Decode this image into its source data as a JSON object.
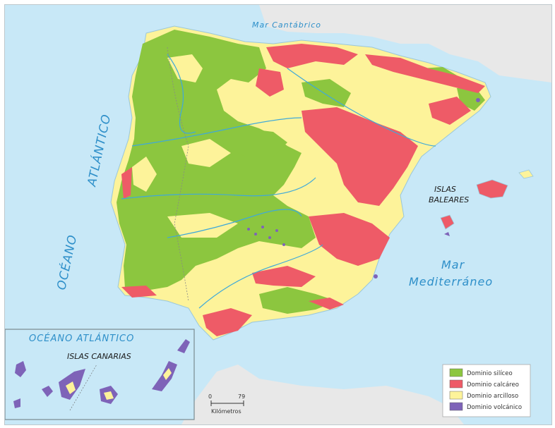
{
  "labels": {
    "mar_cantabrico": "Mar Cantábrico",
    "atlantico": "ATLÁNTICO",
    "oceano": "OCÉANO",
    "islas_baleares_1": "ISLAS",
    "islas_baleares_2": "BALEARES",
    "mar": "Mar",
    "mediterraneo": "Mediterráneo",
    "inset_title": "OCÉANO   ATLÁNTICO",
    "islas_canarias": "ISLAS CANARIAS"
  },
  "legend": [
    {
      "label": "Dominio silíceo",
      "color": "#8cc63f"
    },
    {
      "label": "Dominio calcáreo",
      "color": "#ee5b67"
    },
    {
      "label": "Dominio arcilloso",
      "color": "#fdf39a"
    },
    {
      "label": "Dominio volcánico",
      "color": "#7e63b8"
    }
  ],
  "scale": {
    "start": "0",
    "end": "79",
    "unit": "Kilómetros"
  },
  "colors": {
    "sea": "#c8e8f7",
    "land_foreign": "#e8e8e8",
    "siliceo": "#8cc63f",
    "calcareo": "#ee5b67",
    "arcilloso": "#fdf39a",
    "volcanico": "#7e63b8",
    "river": "#3fa9d9"
  }
}
